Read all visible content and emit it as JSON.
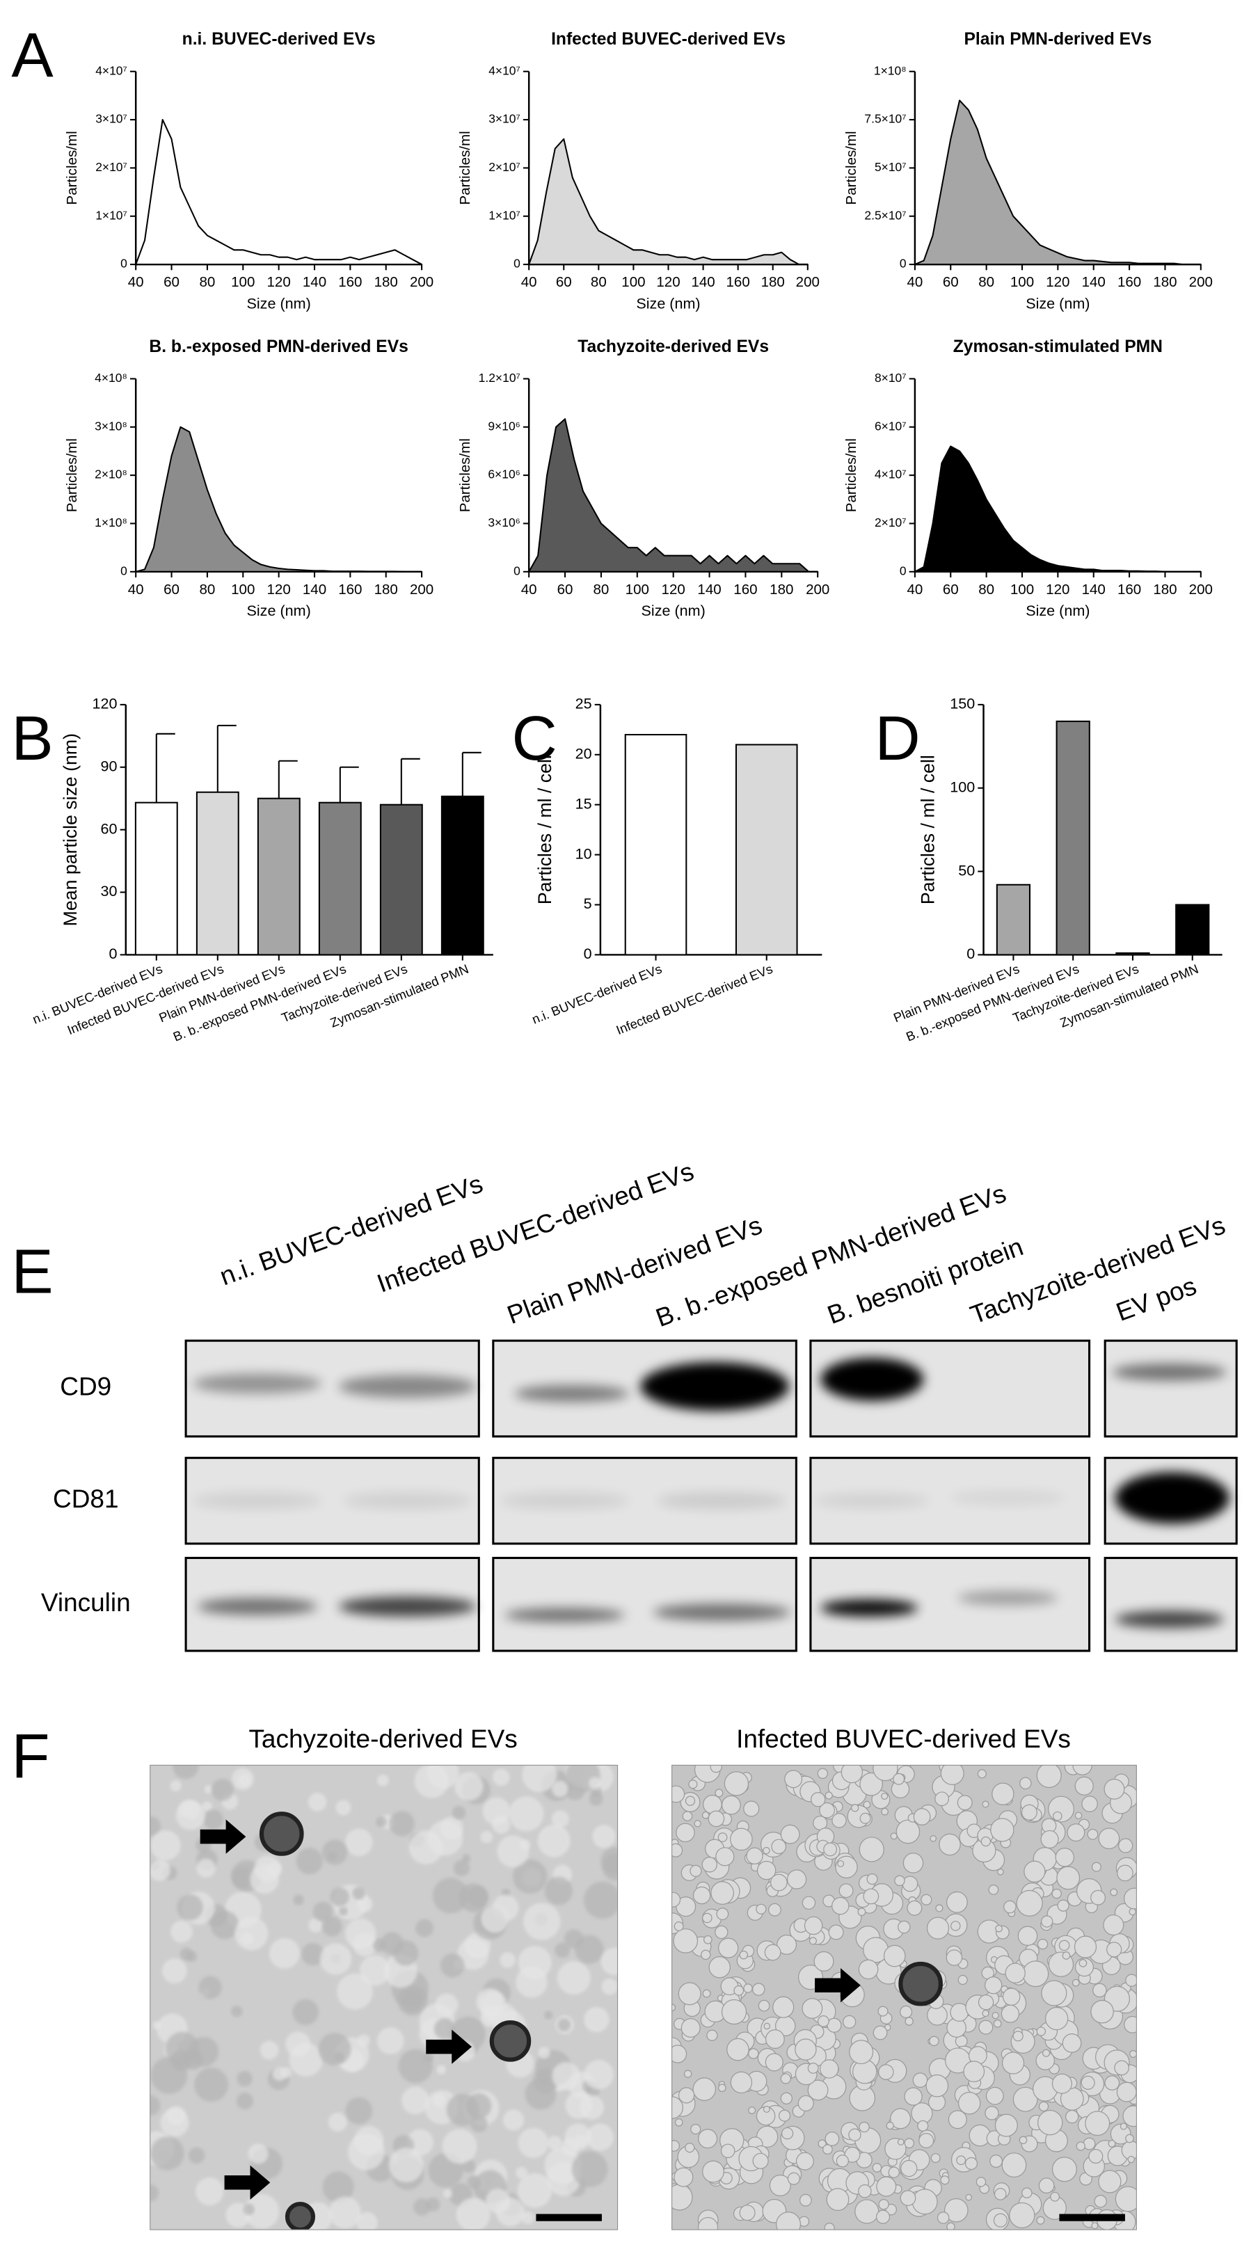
{
  "figure": {
    "panel_labels": [
      "A",
      "B",
      "C",
      "D",
      "E",
      "F"
    ]
  },
  "chart_data": [
    {
      "type": "area",
      "title": "n.i. BUVEC-derived EVs",
      "xlabel": "Size (nm)",
      "ylabel": "Particles/ml",
      "color": "#ffffff",
      "x": [
        40,
        45,
        50,
        55,
        60,
        65,
        70,
        75,
        80,
        85,
        90,
        95,
        100,
        105,
        110,
        115,
        120,
        125,
        130,
        135,
        140,
        145,
        150,
        155,
        160,
        165,
        170,
        175,
        180,
        185,
        190,
        195,
        200
      ],
      "values": [
        0,
        5000000.0,
        18000000.0,
        30000000.0,
        26000000.0,
        16000000.0,
        12000000.0,
        8000000.0,
        6000000.0,
        5000000.0,
        4000000.0,
        3000000.0,
        3000000.0,
        2500000.0,
        2000000.0,
        2000000.0,
        1500000.0,
        1500000.0,
        1000000.0,
        1500000.0,
        1000000.0,
        1000000.0,
        1000000.0,
        1000000.0,
        1500000.0,
        1000000.0,
        1500000.0,
        2000000.0,
        2500000.0,
        3000000.0,
        2000000.0,
        1000000.0,
        0
      ],
      "xlim": [
        40,
        200
      ],
      "ylim": [
        0,
        40000000.0
      ],
      "xticks": [
        40,
        60,
        80,
        100,
        120,
        140,
        160,
        180,
        200
      ],
      "yticks": [
        0,
        {
          "value": 10000000.0,
          "label": "1×10⁷"
        },
        {
          "value": 20000000.0,
          "label": "2×10⁷"
        },
        {
          "value": 30000000.0,
          "label": "3×10⁷"
        },
        {
          "value": 40000000.0,
          "label": "4×10⁷"
        }
      ]
    },
    {
      "type": "area",
      "title": "Infected BUVEC-derived EVs",
      "xlabel": "Size (nm)",
      "ylabel": "Particles/ml",
      "color": "#d9d9d9",
      "x": [
        40,
        45,
        50,
        55,
        60,
        65,
        70,
        75,
        80,
        85,
        90,
        95,
        100,
        105,
        110,
        115,
        120,
        125,
        130,
        135,
        140,
        145,
        150,
        155,
        160,
        165,
        170,
        175,
        180,
        185,
        190,
        195,
        200
      ],
      "values": [
        0,
        5000000.0,
        15000000.0,
        24000000.0,
        26000000.0,
        18000000.0,
        14000000.0,
        10000000.0,
        7000000.0,
        6000000.0,
        5000000.0,
        4000000.0,
        3000000.0,
        3000000.0,
        2500000.0,
        2000000.0,
        2000000.0,
        1500000.0,
        1500000.0,
        1000000.0,
        1500000.0,
        1000000.0,
        1000000.0,
        1000000.0,
        1000000.0,
        1000000.0,
        1500000.0,
        2000000.0,
        2000000.0,
        2500000.0,
        1000000.0,
        0,
        0
      ],
      "xlim": [
        40,
        200
      ],
      "ylim": [
        0,
        40000000.0
      ],
      "xticks": [
        40,
        60,
        80,
        100,
        120,
        140,
        160,
        180,
        200
      ],
      "yticks": [
        0,
        {
          "value": 10000000.0,
          "label": "1×10⁷"
        },
        {
          "value": 20000000.0,
          "label": "2×10⁷"
        },
        {
          "value": 30000000.0,
          "label": "3×10⁷"
        },
        {
          "value": 40000000.0,
          "label": "4×10⁷"
        }
      ]
    },
    {
      "type": "area",
      "title": "Plain PMN-derived EVs",
      "xlabel": "Size (nm)",
      "ylabel": "Particles/ml",
      "color": "#a6a6a6",
      "x": [
        40,
        45,
        50,
        55,
        60,
        65,
        70,
        75,
        80,
        85,
        90,
        95,
        100,
        105,
        110,
        115,
        120,
        125,
        130,
        135,
        140,
        145,
        150,
        155,
        160,
        165,
        170,
        175,
        180,
        185,
        190,
        195,
        200
      ],
      "values": [
        0,
        2000000.0,
        15000000.0,
        40000000.0,
        65000000.0,
        85000000.0,
        80000000.0,
        70000000.0,
        55000000.0,
        45000000.0,
        35000000.0,
        25000000.0,
        20000000.0,
        15000000.0,
        10000000.0,
        8000000.0,
        6000000.0,
        4000000.0,
        3000000.0,
        2000000.0,
        2000000.0,
        1500000.0,
        1000000.0,
        1000000.0,
        1000000.0,
        500000.0,
        500000.0,
        500000.0,
        500000.0,
        500000.0,
        0,
        0,
        0
      ],
      "xlim": [
        40,
        200
      ],
      "ylim": [
        0,
        100000000.0
      ],
      "xticks": [
        40,
        60,
        80,
        100,
        120,
        140,
        160,
        180,
        200
      ],
      "yticks": [
        0,
        {
          "value": 25000000.0,
          "label": "2.5×10⁷"
        },
        {
          "value": 50000000.0,
          "label": "5×10⁷"
        },
        {
          "value": 75000000.0,
          "label": "7.5×10⁷"
        },
        {
          "value": 100000000.0,
          "label": "1×10⁸"
        }
      ]
    },
    {
      "type": "area",
      "title": "B. b.-exposed PMN-derived EVs",
      "xlabel": "Size (nm)",
      "ylabel": "Particles/ml",
      "color": "#8c8c8c",
      "x": [
        40,
        45,
        50,
        55,
        60,
        65,
        70,
        75,
        80,
        85,
        90,
        95,
        100,
        105,
        110,
        115,
        120,
        125,
        130,
        135,
        140,
        145,
        150,
        155,
        160,
        165,
        170,
        175,
        180,
        185,
        190,
        195,
        200
      ],
      "values": [
        0,
        5000000.0,
        50000000.0,
        150000000.0,
        240000000.0,
        300000000.0,
        290000000.0,
        230000000.0,
        170000000.0,
        120000000.0,
        80000000.0,
        55000000.0,
        40000000.0,
        25000000.0,
        15000000.0,
        10000000.0,
        7000000.0,
        5000000.0,
        4000000.0,
        3000000.0,
        2000000.0,
        2000000.0,
        1000000.0,
        1000000.0,
        1000000.0,
        1000000.0,
        500000.0,
        500000.0,
        500000.0,
        500000.0,
        0,
        0,
        0
      ],
      "xlim": [
        40,
        200
      ],
      "ylim": [
        0,
        400000000.0
      ],
      "xticks": [
        40,
        60,
        80,
        100,
        120,
        140,
        160,
        180,
        200
      ],
      "yticks": [
        0,
        {
          "value": 100000000.0,
          "label": "1×10⁸"
        },
        {
          "value": 200000000.0,
          "label": "2×10⁸"
        },
        {
          "value": 300000000.0,
          "label": "3×10⁸"
        },
        {
          "value": 400000000.0,
          "label": "4×10⁸"
        }
      ]
    },
    {
      "type": "area",
      "title": "Tachyzoite-derived  EVs",
      "xlabel": "Size (nm)",
      "ylabel": "Particles/ml",
      "color": "#595959",
      "x": [
        40,
        45,
        50,
        55,
        60,
        65,
        70,
        75,
        80,
        85,
        90,
        95,
        100,
        105,
        110,
        115,
        120,
        125,
        130,
        135,
        140,
        145,
        150,
        155,
        160,
        165,
        170,
        175,
        180,
        185,
        190,
        195,
        200
      ],
      "values": [
        0,
        1000000.0,
        6000000.0,
        9000000.0,
        9500000.0,
        7000000.0,
        5000000.0,
        4000000.0,
        3000000.0,
        2500000.0,
        2000000.0,
        1500000.0,
        1500000.0,
        1000000.0,
        1500000.0,
        1000000.0,
        1000000.0,
        1000000.0,
        1000000.0,
        500000.0,
        1000000.0,
        500000.0,
        1000000.0,
        500000.0,
        1000000.0,
        500000.0,
        1000000.0,
        500000.0,
        500000.0,
        500000.0,
        500000.0,
        0,
        0
      ],
      "xlim": [
        40,
        200
      ],
      "ylim": [
        0,
        12000000.0
      ],
      "xticks": [
        40,
        60,
        80,
        100,
        120,
        140,
        160,
        180,
        200
      ],
      "yticks": [
        0,
        {
          "value": 3000000.0,
          "label": "3×10⁶"
        },
        {
          "value": 6000000.0,
          "label": "6×10⁶"
        },
        {
          "value": 9000000.0,
          "label": "9×10⁶"
        },
        {
          "value": 12000000.0,
          "label": "1.2×10⁷"
        }
      ]
    },
    {
      "type": "area",
      "title": "Zymosan-stimulated PMN",
      "xlabel": "Size (nm)",
      "ylabel": "Particles/ml",
      "color": "#000000",
      "x": [
        40,
        45,
        50,
        55,
        60,
        65,
        70,
        75,
        80,
        85,
        90,
        95,
        100,
        105,
        110,
        115,
        120,
        125,
        130,
        135,
        140,
        145,
        150,
        155,
        160,
        165,
        170,
        175,
        180,
        185,
        190,
        195,
        200
      ],
      "values": [
        0,
        2000000.0,
        20000000.0,
        45000000.0,
        52000000.0,
        50000000.0,
        45000000.0,
        38000000.0,
        30000000.0,
        24000000.0,
        18000000.0,
        13000000.0,
        10000000.0,
        7000000.0,
        5000000.0,
        3500000.0,
        2500000.0,
        2000000.0,
        1500000.0,
        1000000.0,
        1000000.0,
        500000.0,
        500000.0,
        500000.0,
        300000.0,
        300000.0,
        200000.0,
        200000.0,
        0,
        0,
        0,
        0,
        0
      ],
      "xlim": [
        40,
        200
      ],
      "ylim": [
        0,
        80000000.0
      ],
      "xticks": [
        40,
        60,
        80,
        100,
        120,
        140,
        160,
        180,
        200
      ],
      "yticks": [
        0,
        {
          "value": 20000000.0,
          "label": "2×10⁷"
        },
        {
          "value": 40000000.0,
          "label": "4×10⁷"
        },
        {
          "value": 60000000.0,
          "label": "6×10⁷"
        },
        {
          "value": 80000000.0,
          "label": "8×10⁷"
        }
      ]
    },
    {
      "type": "bar",
      "ylabel": "Mean particle size (nm)",
      "categories": [
        "n.i. BUVEC-derived EVs",
        "Infected BUVEC-derived EVs",
        "Plain PMN-derived EVs",
        "B. b.-exposed PMN-derived EVs",
        "Tachyzoite-derived EVs",
        "Zymosan-stimulated PMN"
      ],
      "values": [
        73,
        78,
        75,
        73,
        72,
        76
      ],
      "errors": [
        33,
        32,
        18,
        17,
        22,
        21
      ],
      "colors": [
        "#ffffff",
        "#d9d9d9",
        "#a6a6a6",
        "#808080",
        "#595959",
        "#000000"
      ],
      "ylim": [
        0,
        120
      ],
      "yticks": [
        0,
        30,
        60,
        90,
        120
      ]
    },
    {
      "type": "bar",
      "ylabel": "Particles / ml / cell",
      "categories": [
        "n.i. BUVEC-derived EVs",
        "Infected BUVEC-derived EVs"
      ],
      "values": [
        22,
        21
      ],
      "colors": [
        "#ffffff",
        "#d9d9d9"
      ],
      "ylim": [
        0,
        25
      ],
      "yticks": [
        0,
        5,
        10,
        15,
        20,
        25
      ]
    },
    {
      "type": "bar",
      "ylabel": "Particles / ml / cell",
      "categories": [
        "Plain PMN-derived EVs",
        "B. b.-exposed PMN-derived EVs",
        "Tachyzoite-derived EVs",
        "Zymosan-stimulated PMN"
      ],
      "values": [
        42,
        140,
        1,
        30
      ],
      "colors": [
        "#a6a6a6",
        "#808080",
        "#595959",
        "#000000"
      ],
      "ylim": [
        0,
        150
      ],
      "yticks": [
        0,
        50,
        100,
        150
      ]
    }
  ],
  "blot": {
    "columns": [
      "n.i. BUVEC-derived EVs",
      "Infected BUVEC-derived EVs",
      "Plain PMN-derived EVs",
      "B. b.-exposed PMN-derived EVs",
      "B. besnoiti protein",
      "Tachyzoite-derived EVs",
      "EV pos"
    ],
    "rows": [
      "CD9",
      "CD81",
      "Vinculin"
    ]
  },
  "em": {
    "panels": [
      {
        "title": "Tachyzoite-derived EVs"
      },
      {
        "title": "Infected BUVEC-derived EVs"
      }
    ]
  }
}
